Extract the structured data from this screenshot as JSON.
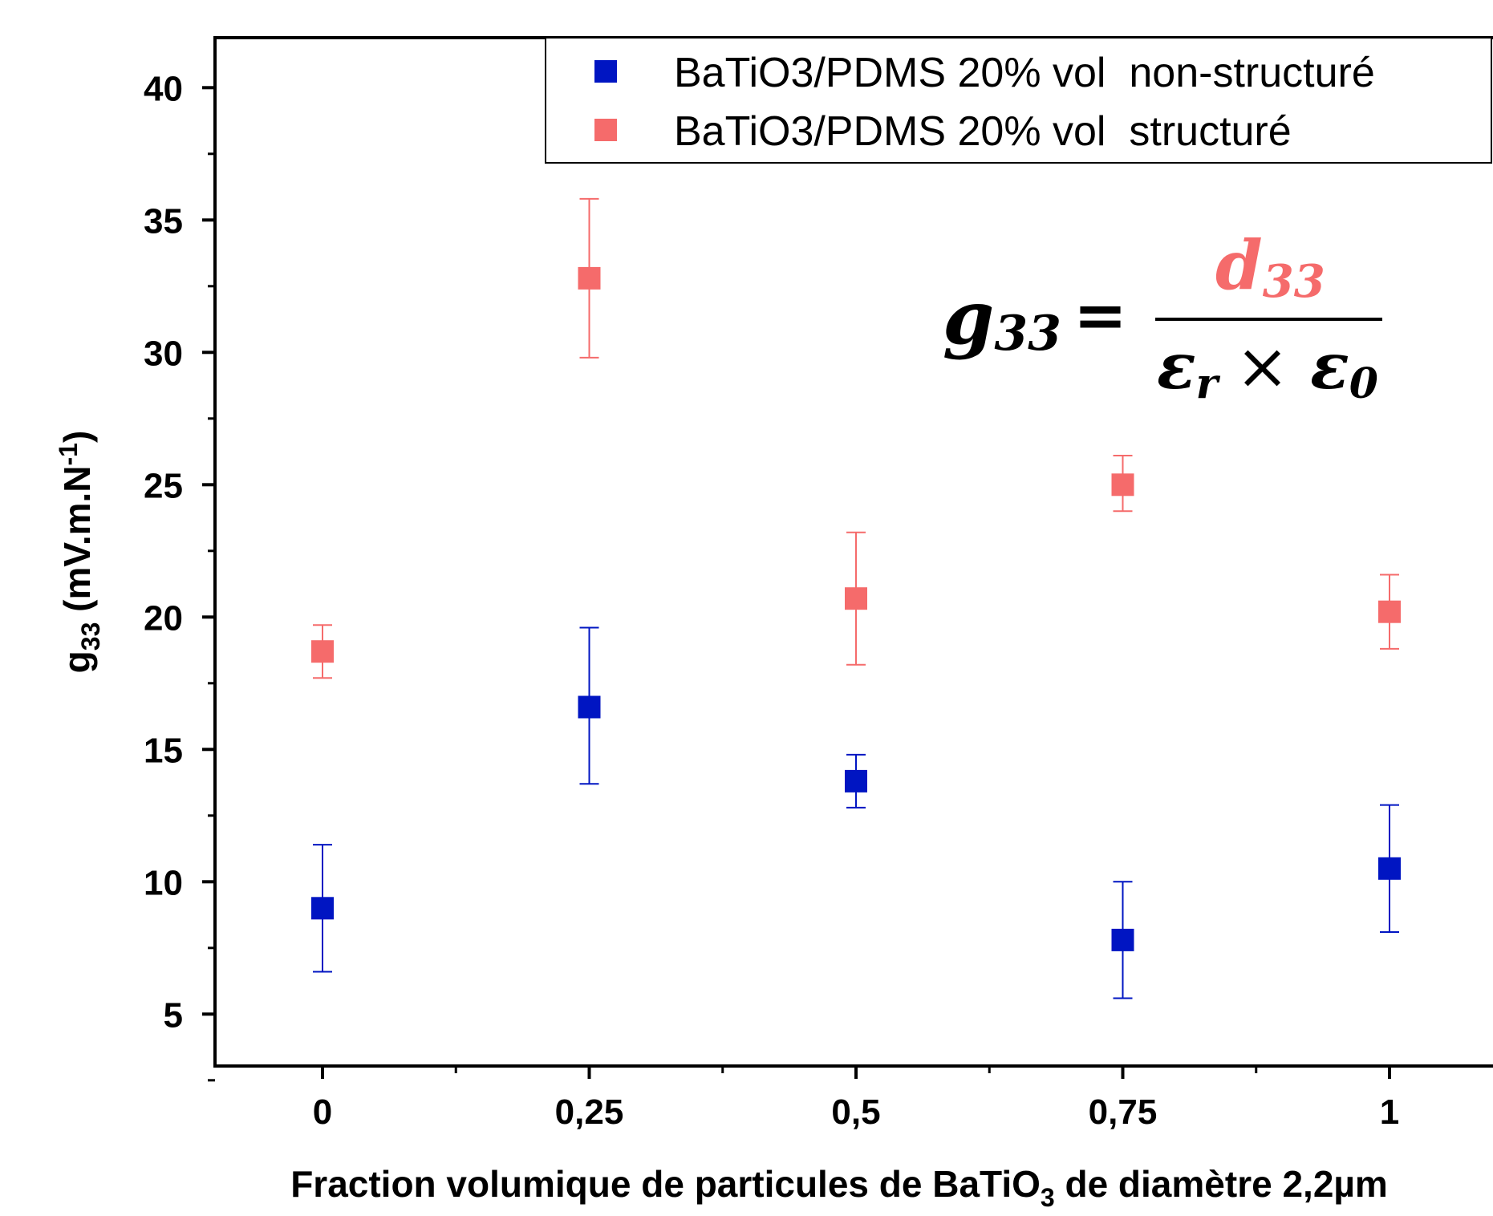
{
  "chart_data": {
    "type": "scatter",
    "title": "",
    "xlabel": {
      "prefix": "Fraction volumique de particules de BaTiO",
      "sub": "3",
      "suffix": " de diamètre 2,2µm"
    },
    "ylabel": {
      "main": "g",
      "sub": "33",
      "unit_pre": " (mV.m.N",
      "sup": "-1",
      "unit_post": ")"
    },
    "x_ticks": [
      {
        "value": 0,
        "label": "0"
      },
      {
        "value": 0.25,
        "label": "0,25"
      },
      {
        "value": 0.5,
        "label": "0,5"
      },
      {
        "value": 0.75,
        "label": "0,75"
      },
      {
        "value": 1,
        "label": "1"
      }
    ],
    "y_ticks": [
      5,
      10,
      15,
      20,
      25,
      30,
      35,
      40
    ],
    "xlim": [
      -0.1,
      1.1
    ],
    "ylim": [
      3,
      42
    ],
    "grid": false,
    "legend_position": "top-right",
    "series": [
      {
        "name": "BaTiO3/PDMS 20% vol  non-structuré",
        "color": "#0015C2",
        "marker": "square",
        "points": [
          {
            "x": 0,
            "y": 9.0,
            "err_low": 6.6,
            "err_high": 11.4
          },
          {
            "x": 0.25,
            "y": 16.6,
            "err_low": 13.7,
            "err_high": 19.6
          },
          {
            "x": 0.5,
            "y": 13.8,
            "err_low": 12.8,
            "err_high": 14.8
          },
          {
            "x": 0.75,
            "y": 7.8,
            "err_low": 5.6,
            "err_high": 10.0
          },
          {
            "x": 1,
            "y": 10.5,
            "err_low": 8.1,
            "err_high": 12.9
          }
        ]
      },
      {
        "name": "BaTiO3/PDMS 20% vol  structuré",
        "color": "#F56B6B",
        "marker": "square",
        "points": [
          {
            "x": 0,
            "y": 18.7,
            "err_low": 17.7,
            "err_high": 19.7
          },
          {
            "x": 0.25,
            "y": 32.8,
            "err_low": 29.8,
            "err_high": 35.8
          },
          {
            "x": 0.5,
            "y": 20.7,
            "err_low": 18.2,
            "err_high": 23.2
          },
          {
            "x": 0.75,
            "y": 25.0,
            "err_low": 24.0,
            "err_high": 26.1
          },
          {
            "x": 1,
            "y": 20.2,
            "err_low": 18.8,
            "err_high": 21.6
          }
        ]
      }
    ],
    "annotation": {
      "lhs": "g",
      "lhs_sub": "33",
      "equals": "=",
      "numerator": "d",
      "numerator_sub": "33",
      "numerator_color": "#F56B6B",
      "denom_a": "ε",
      "denom_a_sub": "r",
      "times": "×",
      "denom_b": "ε",
      "denom_b_sub": "0"
    }
  }
}
